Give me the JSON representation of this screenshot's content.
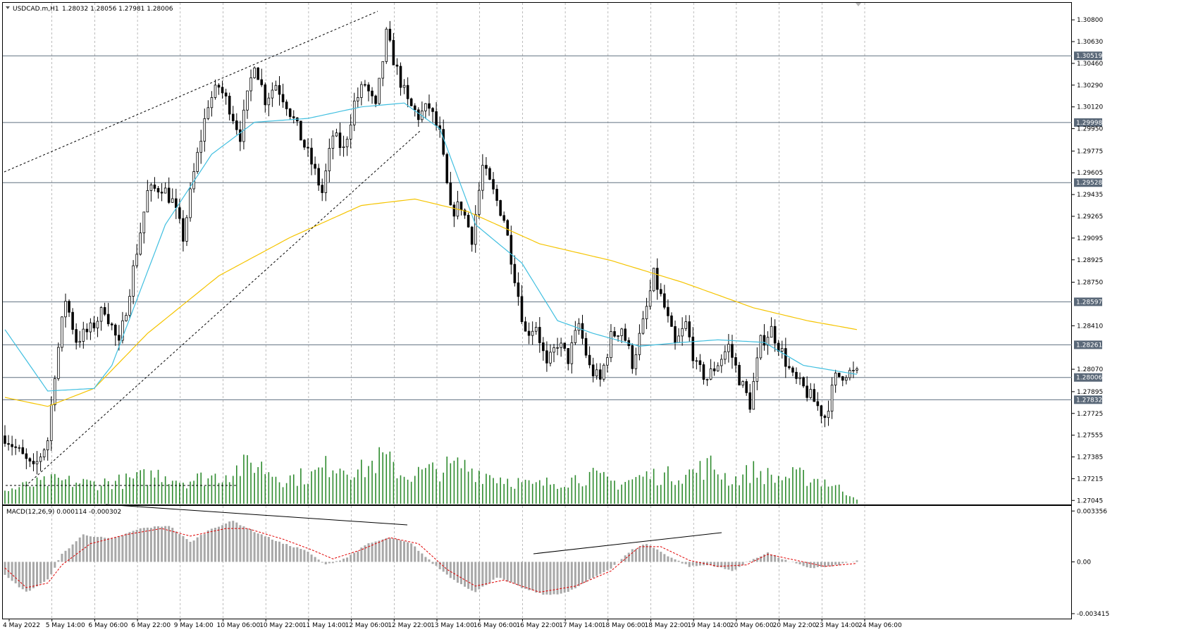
{
  "header": {
    "symbol": "USDCAD.m,H1",
    "ohlc": "1.28032 1.28056 1.27981 1.28006"
  },
  "macd_header": "MACD(12,26,9) 0.000114 -0.000302",
  "colors": {
    "candle": "#000000",
    "ma_fast": "#40bfe0",
    "ma_slow": "#f5c400",
    "volume": "#2e8b2e",
    "macd_hist": "#a8a8a8",
    "macd_signal": "#e00000",
    "level_line": "#607080",
    "tag_bg": "#5a6878",
    "grid": "#909090"
  },
  "chart_data": {
    "type": "candlestick",
    "price_ticks": [
      "1.30800",
      "1.30630",
      "1.30460",
      "1.30290",
      "1.30120",
      "1.29950",
      "1.29775",
      "1.29605",
      "1.29435",
      "1.29265",
      "1.29095",
      "1.28925",
      "1.28750",
      "1.28410",
      "1.28070",
      "1.27895",
      "1.27725",
      "1.27555",
      "1.27385",
      "1.27215",
      "1.27045"
    ],
    "ylim": [
      1.2703,
      1.309
    ],
    "levels": [
      "1.30519",
      "1.29998",
      "1.29528",
      "1.28597",
      "1.28261",
      "1.28006",
      "1.27832"
    ],
    "time_labels": [
      "4 May 2022",
      "5 May 14:00",
      "6 May 06:00",
      "6 May 22:00",
      "9 May 14:00",
      "10 May 06:00",
      "10 May 22:00",
      "11 May 14:00",
      "12 May 06:00",
      "12 May 22:00",
      "13 May 14:00",
      "16 May 06:00",
      "16 May 22:00",
      "17 May 14:00",
      "18 May 06:00",
      "18 May 22:00",
      "19 May 14:00",
      "20 May 06:00",
      "20 May 22:00",
      "23 May 14:00",
      "24 May 06:00"
    ],
    "macd_ticks": [
      "0.003356",
      "0.00",
      "-0.003415"
    ],
    "macd_ylim": [
      -0.00365,
      0.0036
    ],
    "bar_count": 200,
    "price_path": [
      [
        0,
        1.2755
      ],
      [
        4,
        1.2742
      ],
      [
        8,
        1.2728
      ],
      [
        12,
        1.2752
      ],
      [
        14,
        1.2805
      ],
      [
        17,
        1.2862
      ],
      [
        20,
        1.283
      ],
      [
        24,
        1.2838
      ],
      [
        28,
        1.2855
      ],
      [
        32,
        1.2825
      ],
      [
        36,
        1.2885
      ],
      [
        40,
        1.2945
      ],
      [
        44,
        1.295
      ],
      [
        47,
        1.2938
      ],
      [
        50,
        1.291
      ],
      [
        53,
        1.296
      ],
      [
        57,
        1.3015
      ],
      [
        60,
        1.3028
      ],
      [
        63,
        1.3012
      ],
      [
        66,
        1.299
      ],
      [
        70,
        1.3048
      ],
      [
        73,
        1.3018
      ],
      [
        76,
        1.303
      ],
      [
        79,
        1.3015
      ],
      [
        82,
        1.2995
      ],
      [
        86,
        1.2968
      ],
      [
        89,
        1.2945
      ],
      [
        92,
        1.299
      ],
      [
        95,
        1.2978
      ],
      [
        98,
        1.3015
      ],
      [
        101,
        1.303
      ],
      [
        104,
        1.301
      ],
      [
        107,
        1.3068
      ],
      [
        110,
        1.304
      ],
      [
        113,
        1.3015
      ],
      [
        116,
        1.3005
      ],
      [
        119,
        1.3012
      ],
      [
        122,
        1.299
      ],
      [
        125,
        1.293
      ],
      [
        128,
        1.2935
      ],
      [
        131,
        1.291
      ],
      [
        134,
        1.2965
      ],
      [
        137,
        1.2945
      ],
      [
        140,
        1.2925
      ],
      [
        143,
        1.288
      ],
      [
        146,
        1.2835
      ],
      [
        149,
        1.2842
      ],
      [
        152,
        1.2808
      ],
      [
        155,
        1.2828
      ],
      [
        158,
        1.2815
      ],
      [
        161,
        1.2842
      ],
      [
        164,
        1.2808
      ],
      [
        167,
        1.2798
      ],
      [
        170,
        1.2832
      ],
      [
        173,
        1.284
      ],
      [
        176,
        1.2812
      ],
      [
        179,
        1.2842
      ],
      [
        182,
        1.288
      ],
      [
        185,
        1.2855
      ],
      [
        188,
        1.2825
      ],
      [
        191,
        1.2842
      ],
      [
        194,
        1.2808
      ],
      [
        197,
        1.28
      ],
      [
        200,
        1.2812
      ],
      [
        203,
        1.2825
      ],
      [
        206,
        1.28
      ],
      [
        209,
        1.278
      ],
      [
        212,
        1.2828
      ],
      [
        215,
        1.2838
      ],
      [
        218,
        1.282
      ],
      [
        221,
        1.28
      ],
      [
        224,
        1.2792
      ],
      [
        227,
        1.2782
      ],
      [
        230,
        1.277
      ],
      [
        233,
        1.28
      ],
      [
        236,
        1.2805
      ],
      [
        239,
        1.2803
      ]
    ],
    "ma_fast_path": [
      [
        0,
        1.2838
      ],
      [
        12,
        1.279
      ],
      [
        25,
        1.2792
      ],
      [
        30,
        1.281
      ],
      [
        45,
        1.292
      ],
      [
        58,
        1.2975
      ],
      [
        70,
        1.3
      ],
      [
        85,
        1.3003
      ],
      [
        100,
        1.3012
      ],
      [
        112,
        1.3015
      ],
      [
        122,
        1.2995
      ],
      [
        132,
        1.292
      ],
      [
        145,
        1.289
      ],
      [
        155,
        1.2845
      ],
      [
        165,
        1.2835
      ],
      [
        178,
        1.2825
      ],
      [
        190,
        1.2828
      ],
      [
        200,
        1.283
      ],
      [
        213,
        1.2828
      ],
      [
        224,
        1.281
      ],
      [
        239,
        1.2803
      ]
    ],
    "ma_slow_path": [
      [
        0,
        1.2785
      ],
      [
        12,
        1.2778
      ],
      [
        25,
        1.2792
      ],
      [
        40,
        1.2835
      ],
      [
        60,
        1.288
      ],
      [
        80,
        1.291
      ],
      [
        100,
        1.2935
      ],
      [
        115,
        1.294
      ],
      [
        130,
        1.293
      ],
      [
        150,
        1.2905
      ],
      [
        170,
        1.2892
      ],
      [
        190,
        1.2875
      ],
      [
        210,
        1.2855
      ],
      [
        225,
        1.2845
      ],
      [
        239,
        1.2838
      ]
    ],
    "volume_profile": [
      [
        0,
        0.25
      ],
      [
        6,
        0.35
      ],
      [
        14,
        0.45
      ],
      [
        24,
        0.4
      ],
      [
        34,
        0.45
      ],
      [
        44,
        0.6
      ],
      [
        50,
        0.45
      ],
      [
        60,
        0.55
      ],
      [
        70,
        0.8
      ],
      [
        78,
        0.5
      ],
      [
        86,
        0.55
      ],
      [
        92,
        0.8
      ],
      [
        100,
        0.65
      ],
      [
        106,
        0.9
      ],
      [
        112,
        0.55
      ],
      [
        120,
        0.65
      ],
      [
        128,
        0.75
      ],
      [
        134,
        0.6
      ],
      [
        140,
        0.5
      ],
      [
        148,
        0.35
      ],
      [
        156,
        0.45
      ],
      [
        164,
        0.55
      ],
      [
        172,
        0.4
      ],
      [
        180,
        0.55
      ],
      [
        186,
        0.55
      ],
      [
        192,
        0.6
      ],
      [
        198,
        0.75
      ],
      [
        204,
        0.45
      ],
      [
        210,
        0.65
      ],
      [
        216,
        0.5
      ],
      [
        222,
        0.55
      ],
      [
        230,
        0.45
      ],
      [
        239,
        0.12
      ]
    ],
    "macd_path": [
      [
        0,
        -0.0009
      ],
      [
        6,
        -0.002
      ],
      [
        12,
        -0.0012
      ],
      [
        16,
        0.0005
      ],
      [
        22,
        0.0018
      ],
      [
        30,
        0.0015
      ],
      [
        38,
        0.0022
      ],
      [
        46,
        0.0024
      ],
      [
        52,
        0.0013
      ],
      [
        58,
        0.0022
      ],
      [
        64,
        0.0027
      ],
      [
        70,
        0.002
      ],
      [
        78,
        0.0012
      ],
      [
        84,
        0.0008
      ],
      [
        90,
        -0.0002
      ],
      [
        96,
        0.0003
      ],
      [
        102,
        0.0012
      ],
      [
        108,
        0.0016
      ],
      [
        114,
        0.0012
      ],
      [
        120,
        -0.0001
      ],
      [
        126,
        -0.0012
      ],
      [
        132,
        -0.002
      ],
      [
        138,
        -0.001
      ],
      [
        146,
        -0.0018
      ],
      [
        152,
        -0.0022
      ],
      [
        158,
        -0.002
      ],
      [
        164,
        -0.0012
      ],
      [
        170,
        -0.0004
      ],
      [
        176,
        0.0008
      ],
      [
        180,
        0.0012
      ],
      [
        186,
        0.0004
      ],
      [
        192,
        -0.0003
      ],
      [
        198,
        -0.0002
      ],
      [
        204,
        -0.0006
      ],
      [
        210,
        0.0002
      ],
      [
        214,
        0.0006
      ],
      [
        220,
        0.0
      ],
      [
        226,
        -0.0004
      ],
      [
        232,
        -0.0003
      ],
      [
        239,
        0.0001
      ]
    ],
    "macd_signal_path": [
      [
        0,
        -0.0004
      ],
      [
        6,
        -0.0017
      ],
      [
        12,
        -0.0014
      ],
      [
        16,
        -0.0002
      ],
      [
        24,
        0.0012
      ],
      [
        34,
        0.0018
      ],
      [
        44,
        0.0022
      ],
      [
        52,
        0.0017
      ],
      [
        62,
        0.0022
      ],
      [
        68,
        0.0022
      ],
      [
        78,
        0.0015
      ],
      [
        86,
        0.0008
      ],
      [
        92,
        0.0002
      ],
      [
        100,
        0.0008
      ],
      [
        108,
        0.0016
      ],
      [
        116,
        0.0012
      ],
      [
        124,
        -0.0005
      ],
      [
        132,
        -0.0016
      ],
      [
        140,
        -0.0012
      ],
      [
        150,
        -0.002
      ],
      [
        160,
        -0.0016
      ],
      [
        170,
        -0.0006
      ],
      [
        178,
        0.001
      ],
      [
        184,
        0.001
      ],
      [
        192,
        0.0001
      ],
      [
        200,
        -0.0003
      ],
      [
        208,
        -0.0002
      ],
      [
        214,
        0.0005
      ],
      [
        222,
        0.0001
      ],
      [
        230,
        -0.0003
      ],
      [
        239,
        -0.0001
      ]
    ]
  }
}
